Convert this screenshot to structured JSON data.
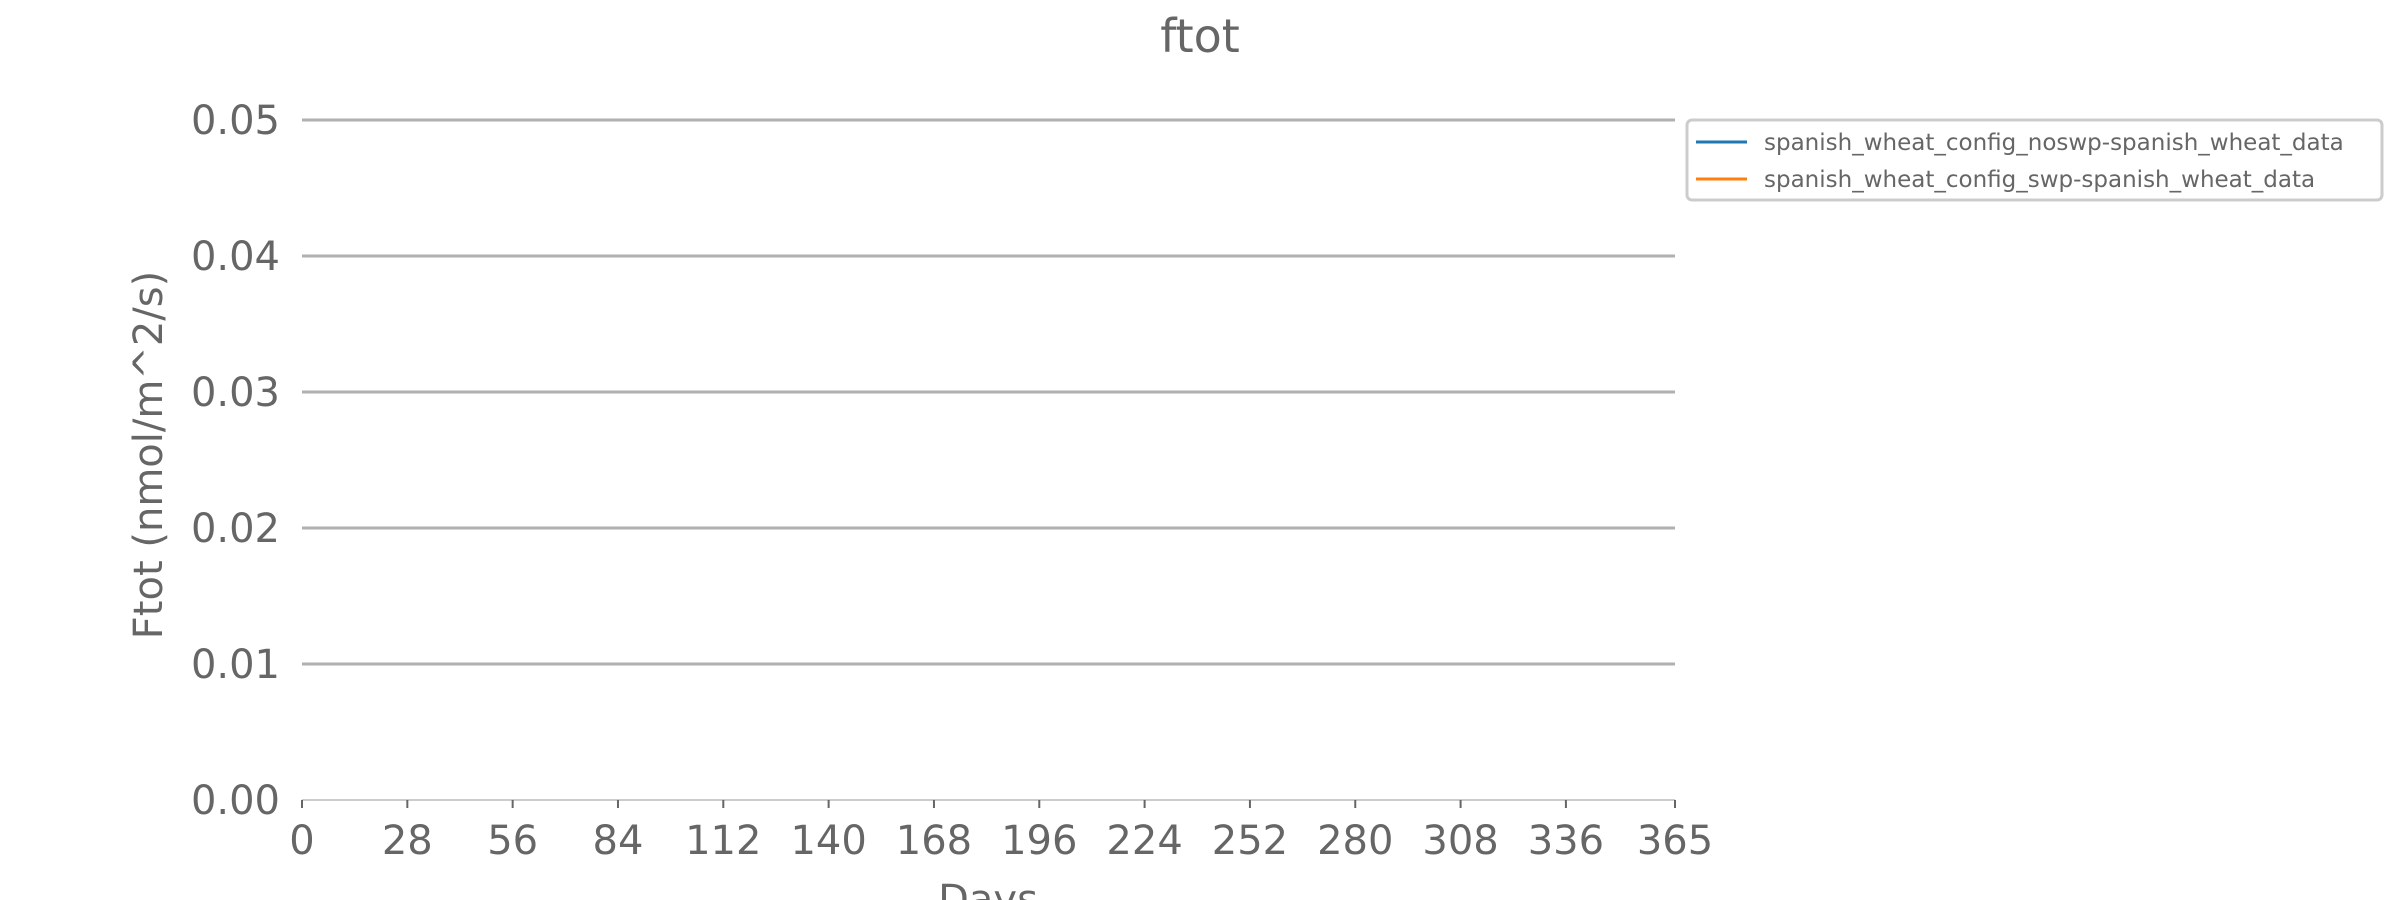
{
  "chart_data": {
    "type": "line",
    "title": "ftot",
    "xlabel": "Days",
    "ylabel": "Ftot (nmol/m^2/s)",
    "xlim": [
      0,
      365
    ],
    "ylim": [
      0,
      0.05
    ],
    "xticks": [
      0,
      28,
      56,
      84,
      112,
      140,
      168,
      196,
      224,
      252,
      280,
      308,
      336,
      365
    ],
    "xtick_labels": [
      "0",
      "28",
      "56",
      "84",
      "112",
      "140",
      "168",
      "196",
      "224",
      "252",
      "280",
      "308",
      "336",
      "365"
    ],
    "yticks": [
      0,
      0.01,
      0.02,
      0.03,
      0.04,
      0.05
    ],
    "ytick_labels": [
      "0.00",
      "0.01",
      "0.02",
      "0.03",
      "0.04",
      "0.05"
    ],
    "grid": "horizontal",
    "legend_position": "outside-top-right",
    "series": [
      {
        "name": "spanish_wheat_config_noswp-spanish_wheat_data",
        "color": "#1f77b4",
        "x": [
          0,
          365
        ],
        "y": [
          0,
          0
        ]
      },
      {
        "name": "spanish_wheat_config_swp-spanish_wheat_data",
        "color": "#ff7f0e",
        "x": [
          0,
          365
        ],
        "y": [
          0,
          0
        ]
      }
    ],
    "colors": {
      "text": "#666666",
      "grid": "#b0b0b0",
      "axis": "#cccccc",
      "legend_border": "#cccccc"
    }
  }
}
